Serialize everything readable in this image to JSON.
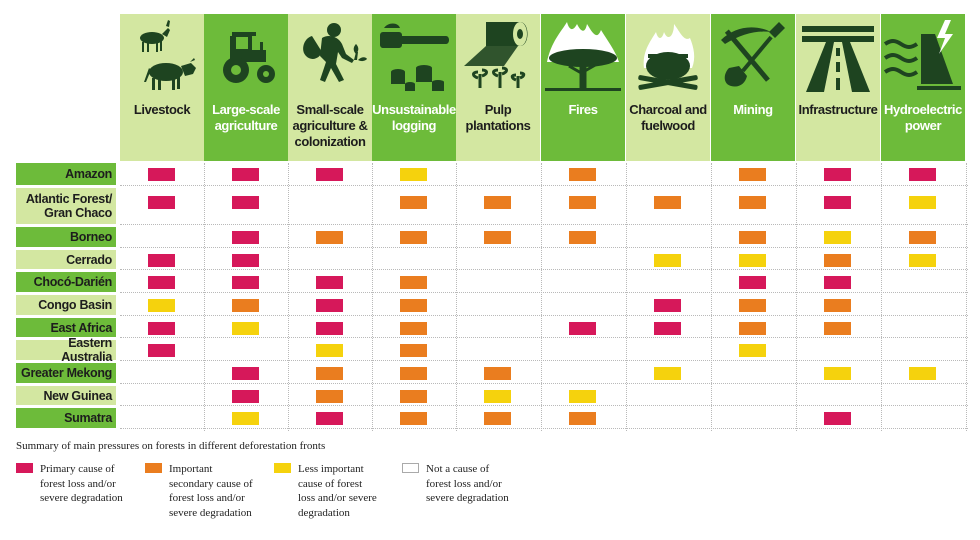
{
  "colors": {
    "header_dark": "#6dbb3a",
    "header_light": "#d3e7a1",
    "primary": "#d6185a",
    "secondary": "#ea7d1f",
    "less": "#f5d20d",
    "none": "#ffffff",
    "icon": "#1e4420"
  },
  "chart_data": {
    "type": "table",
    "columns": [
      {
        "label": "Livestock",
        "icon": "goat-cow-icon"
      },
      {
        "label": "Large-scale\nagriculture",
        "icon": "tractor-icon"
      },
      {
        "label": "Small-scale\nagriculture &\ncolonization",
        "icon": "farmer-icon"
      },
      {
        "label": "Unsustainable\nlogging",
        "icon": "chainsaw-stumps-icon"
      },
      {
        "label": "Pulp\nplantations",
        "icon": "paper-roll-seedlings-icon"
      },
      {
        "label": "Fires",
        "icon": "burning-tree-icon"
      },
      {
        "label": "Charcoal and\nfuelwood",
        "icon": "cooking-pot-fire-icon"
      },
      {
        "label": "Mining",
        "icon": "pickaxe-shovel-icon"
      },
      {
        "label": "Infrastructure",
        "icon": "highway-icon"
      },
      {
        "label": "Hydroelectric\npower",
        "icon": "dam-waves-icon"
      }
    ],
    "rows": [
      {
        "label": "Amazon",
        "values": [
          "P",
          "P",
          "P",
          "L",
          "N",
          "S",
          "N",
          "S",
          "P",
          "P"
        ]
      },
      {
        "label": "Atlantic Forest/\nGran Chaco",
        "values": [
          "P",
          "P",
          "N",
          "S",
          "S",
          "S",
          "S",
          "S",
          "P",
          "L"
        ]
      },
      {
        "label": "Borneo",
        "values": [
          "N",
          "P",
          "S",
          "S",
          "S",
          "S",
          "N",
          "S",
          "L",
          "S"
        ]
      },
      {
        "label": "Cerrado",
        "values": [
          "P",
          "P",
          "N",
          "N",
          "N",
          "N",
          "L",
          "L",
          "S",
          "L"
        ]
      },
      {
        "label": "Chocó-Darién",
        "values": [
          "P",
          "P",
          "P",
          "S",
          "N",
          "N",
          "N",
          "P",
          "P",
          "N"
        ]
      },
      {
        "label": "Congo Basin",
        "values": [
          "L",
          "S",
          "P",
          "S",
          "N",
          "N",
          "P",
          "S",
          "S",
          "N"
        ]
      },
      {
        "label": "East Africa",
        "values": [
          "P",
          "L",
          "P",
          "S",
          "N",
          "P",
          "P",
          "S",
          "S",
          "N"
        ]
      },
      {
        "label": "Eastern Australia",
        "values": [
          "P",
          "N",
          "L",
          "S",
          "N",
          "N",
          "N",
          "L",
          "N",
          "N"
        ]
      },
      {
        "label": "Greater Mekong",
        "values": [
          "N",
          "P",
          "S",
          "S",
          "S",
          "N",
          "L",
          "N",
          "L",
          "L"
        ]
      },
      {
        "label": "New Guinea",
        "values": [
          "N",
          "P",
          "S",
          "S",
          "L",
          "L",
          "N",
          "N",
          "N",
          "N"
        ]
      },
      {
        "label": "Sumatra",
        "values": [
          "N",
          "L",
          "P",
          "S",
          "S",
          "S",
          "N",
          "N",
          "P",
          "N"
        ]
      }
    ],
    "summary": "Summary of main pressures on forests in different deforestation fronts",
    "legend": [
      {
        "code": "P",
        "label": "Primary cause of\nforest loss and/or\nsevere degradation"
      },
      {
        "code": "S",
        "label": "Important\nsecondary cause of\nforest loss and/or\nsevere degradation"
      },
      {
        "code": "L",
        "label": "Less important\ncause of forest\nloss and/or severe\ndegradation"
      },
      {
        "code": "N",
        "label": "Not a cause of\nforest loss and/or\nsevere degradation"
      }
    ]
  }
}
